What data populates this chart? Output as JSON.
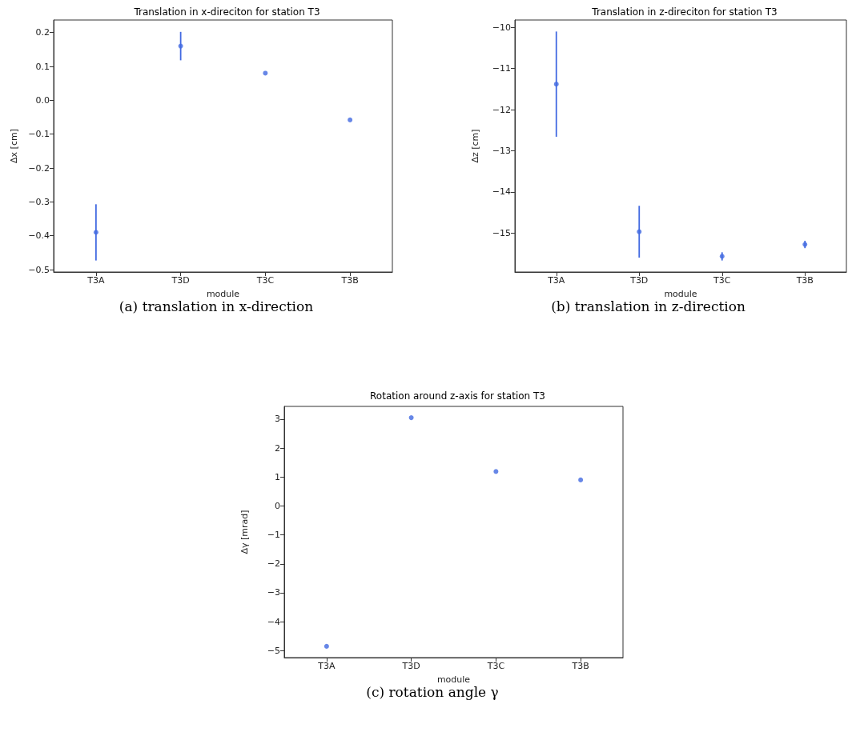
{
  "chart_data": [
    {
      "type": "scatter",
      "title": "Translation in x-direciton for station T3",
      "xlabel": "module",
      "ylabel": "Δx [cm]",
      "categories": [
        "T3A",
        "T3D",
        "T3C",
        "T3B"
      ],
      "series": [
        {
          "color": "#4169e1",
          "values": [
            -0.39,
            0.16,
            0.08,
            -0.058
          ],
          "errors": [
            0.083,
            0.042,
            null,
            null
          ]
        }
      ],
      "ylim": [
        -0.507,
        0.237
      ],
      "yticks": [
        {
          "value": -0.5,
          "label": "−0.5"
        },
        {
          "value": -0.4,
          "label": "−0.4"
        },
        {
          "value": -0.3,
          "label": "−0.3"
        },
        {
          "value": -0.2,
          "label": "−0.2"
        },
        {
          "value": -0.1,
          "label": "−0.1"
        },
        {
          "value": 0,
          "label": "0.0"
        },
        {
          "value": 0.1,
          "label": "0.1"
        },
        {
          "value": 0.2,
          "label": "0.2"
        }
      ],
      "marker": "circle",
      "annotations": [
        "(a) translation in x-direction"
      ]
    },
    {
      "type": "scatter",
      "title": "Translation in z-direciton for station T3",
      "xlabel": "module",
      "ylabel": "Δz [cm]",
      "categories": [
        "T3A",
        "T3D",
        "T3C",
        "T3B"
      ],
      "series": [
        {
          "color": "#4169e1",
          "values": [
            -11.38,
            -14.97,
            -15.57,
            -15.28
          ],
          "errors": [
            1.28,
            0.63,
            0.1,
            0.09
          ]
        }
      ],
      "ylim": [
        -15.95,
        -9.82
      ],
      "yticks": [
        {
          "value": -15,
          "label": "−15"
        },
        {
          "value": -14,
          "label": "−14"
        },
        {
          "value": -13,
          "label": "−13"
        },
        {
          "value": -12,
          "label": "−12"
        },
        {
          "value": -11,
          "label": "−11"
        },
        {
          "value": -10,
          "label": "−10"
        }
      ],
      "marker": "circle",
      "annotations": [
        "(b) translation in z-direction"
      ]
    },
    {
      "type": "scatter",
      "title": "Rotation around z-axis for station T3",
      "xlabel": "module",
      "ylabel": "Δγ [mrad]",
      "categories": [
        "T3A",
        "T3D",
        "T3C",
        "T3B"
      ],
      "series": [
        {
          "color": "#4169e1",
          "values": [
            -4.85,
            3.05,
            1.19,
            0.9
          ]
        }
      ],
      "ylim": [
        -5.24,
        3.44
      ],
      "yticks": [
        {
          "value": -5,
          "label": "−5"
        },
        {
          "value": -4,
          "label": "−4"
        },
        {
          "value": -3,
          "label": "−3"
        },
        {
          "value": -2,
          "label": "−2"
        },
        {
          "value": -1,
          "label": "−1"
        },
        0,
        1,
        2,
        3
      ],
      "marker": "circle",
      "annotations": [
        "(c) rotation angle γ"
      ]
    }
  ]
}
